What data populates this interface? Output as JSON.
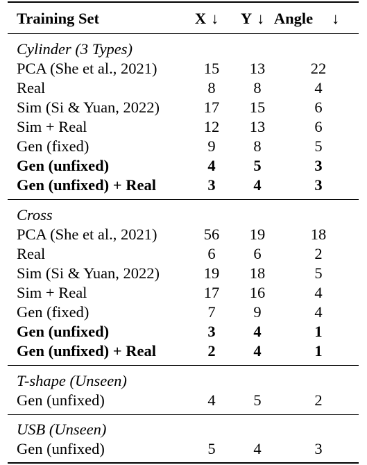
{
  "header": {
    "training_set": "Training Set",
    "x": "X",
    "y": "Y",
    "angle": "Angle",
    "arrow": "↓"
  },
  "groups": [
    {
      "title": "Cylinder (3 Types)",
      "rows": [
        {
          "name": "PCA (She et al., 2021)",
          "x": "15",
          "y": "13",
          "angle": "22",
          "bold": false
        },
        {
          "name": "Real",
          "x": "8",
          "y": "8",
          "angle": "4",
          "bold": false
        },
        {
          "name": "Sim (Si & Yuan, 2022)",
          "x": "17",
          "y": "15",
          "angle": "6",
          "bold": false
        },
        {
          "name": "Sim + Real",
          "x": "12",
          "y": "13",
          "angle": "6",
          "bold": false
        },
        {
          "name": "Gen (fixed)",
          "x": "9",
          "y": "8",
          "angle": "5",
          "bold": false
        },
        {
          "name": "Gen (unfixed)",
          "x": "4",
          "y": "5",
          "angle": "3",
          "bold": true
        },
        {
          "name": "Gen (unfixed) + Real",
          "x": "3",
          "y": "4",
          "angle": "3",
          "bold": true
        }
      ]
    },
    {
      "title": "Cross",
      "rows": [
        {
          "name": "PCA (She et al., 2021)",
          "x": "56",
          "y": "19",
          "angle": "18",
          "bold": false
        },
        {
          "name": "Real",
          "x": "6",
          "y": "6",
          "angle": "2",
          "bold": false
        },
        {
          "name": "Sim (Si & Yuan, 2022)",
          "x": "19",
          "y": "18",
          "angle": "5",
          "bold": false
        },
        {
          "name": "Sim + Real",
          "x": "17",
          "y": "16",
          "angle": "4",
          "bold": false
        },
        {
          "name": "Gen (fixed)",
          "x": "7",
          "y": "9",
          "angle": "4",
          "bold": false
        },
        {
          "name": "Gen (unfixed)",
          "x": "3",
          "y": "4",
          "angle": "1",
          "bold": true
        },
        {
          "name": "Gen (unfixed) + Real",
          "x": "2",
          "y": "4",
          "angle": "1",
          "bold": true
        }
      ]
    },
    {
      "title": "T-shape (Unseen)",
      "rows": [
        {
          "name": "Gen (unfixed)",
          "x": "4",
          "y": "5",
          "angle": "2",
          "bold": false
        }
      ]
    },
    {
      "title": "USB (Unseen)",
      "rows": [
        {
          "name": "Gen (unfixed)",
          "x": "5",
          "y": "4",
          "angle": "3",
          "bold": false
        }
      ]
    }
  ]
}
